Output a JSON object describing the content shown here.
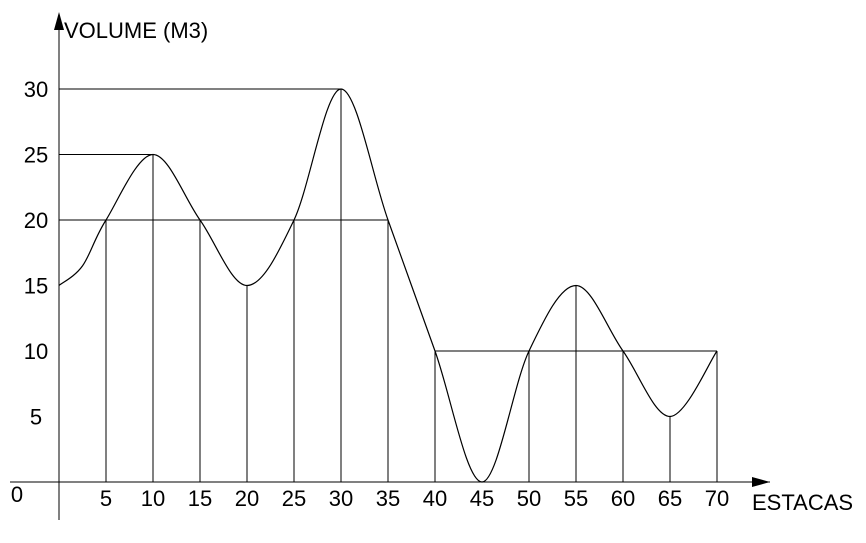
{
  "chart_data": {
    "type": "line",
    "ylabel": "VOLUME (M3)",
    "xlabel": "ESTACAS",
    "xlim": [
      0,
      70
    ],
    "ylim": [
      0,
      30
    ],
    "x_ticks": [
      "0",
      "5",
      "10",
      "15",
      "20",
      "25",
      "30",
      "35",
      "40",
      "45",
      "50",
      "55",
      "60",
      "65",
      "70"
    ],
    "y_ticks": [
      "30",
      "25",
      "20",
      "15",
      "10",
      "5"
    ],
    "origin_label": "0",
    "series": [
      {
        "x": [
          0,
          2.5,
          5,
          10,
          15,
          20,
          25,
          30,
          35,
          40,
          45,
          50,
          55,
          60,
          65,
          70
        ],
        "y": [
          15,
          16.5,
          20,
          25,
          20,
          15,
          20,
          30,
          20,
          10,
          0,
          10,
          15,
          10,
          5,
          10
        ]
      }
    ],
    "horizontal_lines": [
      {
        "y": 30,
        "x_from": 0,
        "x_to": 30
      },
      {
        "y": 25,
        "x_from": 0,
        "x_to": 10
      },
      {
        "y": 20,
        "x_from": 0,
        "x_to": 35
      },
      {
        "y": 10,
        "x_from": 40,
        "x_to": 70
      }
    ],
    "vertical_lines_x": [
      5,
      10,
      15,
      20,
      25,
      30,
      35,
      40,
      45,
      50,
      55,
      60,
      65,
      70
    ],
    "grid": false,
    "legend": "none"
  }
}
